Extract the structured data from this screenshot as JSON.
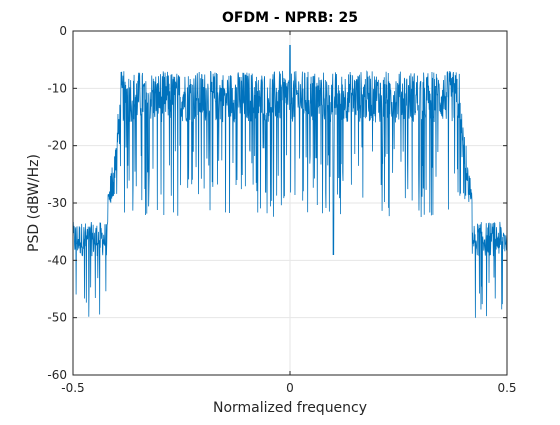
{
  "chart_data": {
    "type": "line",
    "title": "OFDM - NPRB: 25",
    "xlabel": "Normalized frequency",
    "ylabel": "PSD (dBW/Hz)",
    "xlim": [
      -0.5,
      0.5
    ],
    "ylim": [
      -60,
      0
    ],
    "xticks": [
      -0.5,
      0,
      0.5
    ],
    "yticks": [
      0,
      -10,
      -20,
      -30,
      -40,
      -50,
      -60
    ],
    "xtick_labels": [
      "-0.5",
      "0",
      "0.5"
    ],
    "ytick_labels": [
      "0",
      "-10",
      "-20",
      "-30",
      "-40",
      "-50",
      "-60"
    ],
    "grid": true,
    "series": [
      {
        "color": "#0072bd",
        "segments": [
          {
            "x_from": -0.5,
            "x_to": -0.42,
            "level": -36,
            "spread": 6,
            "min": -56
          },
          {
            "x_from": -0.42,
            "x_to": -0.39,
            "level": -22,
            "spread": 8,
            "min": -30
          },
          {
            "x_from": -0.39,
            "x_to": 0.39,
            "level": -11,
            "spread": 9,
            "min": -39
          },
          {
            "x_from": 0.39,
            "x_to": 0.42,
            "level": -22,
            "spread": 8,
            "min": -30
          },
          {
            "x_from": 0.42,
            "x_to": 0.5,
            "level": -36,
            "spread": 6,
            "min": -52
          }
        ],
        "peak": {
          "x": 0.0,
          "y": -2.5
        },
        "notch": {
          "x": 0.1,
          "y": -39
        }
      }
    ]
  }
}
